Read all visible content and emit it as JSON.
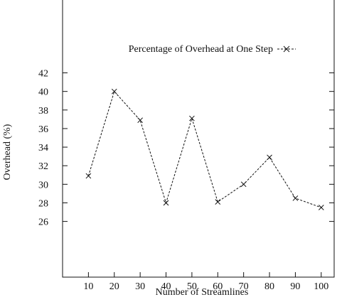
{
  "chart_data": {
    "type": "line",
    "title": "",
    "xlabel": "Number of Streamlines",
    "ylabel": "Overhead (%)",
    "x": [
      10,
      20,
      30,
      40,
      50,
      60,
      70,
      80,
      90,
      100
    ],
    "xticks": [
      "10",
      "20",
      "30",
      "40",
      "50",
      "60",
      "70",
      "80",
      "90",
      "100"
    ],
    "yticks": [
      "26",
      "28",
      "30",
      "32",
      "34",
      "36",
      "38",
      "40",
      "42"
    ],
    "xlim": [
      0,
      105
    ],
    "ylim": [
      20,
      50
    ],
    "grid": false,
    "legend_position": "top-right",
    "series": [
      {
        "name": "Percentage of Overhead at One Step",
        "marker": "x",
        "line_style": "dashed",
        "color": "#111111",
        "values": [
          30.9,
          40.0,
          36.9,
          28.0,
          37.1,
          28.1,
          30.0,
          32.9,
          28.5,
          27.5
        ]
      }
    ]
  }
}
